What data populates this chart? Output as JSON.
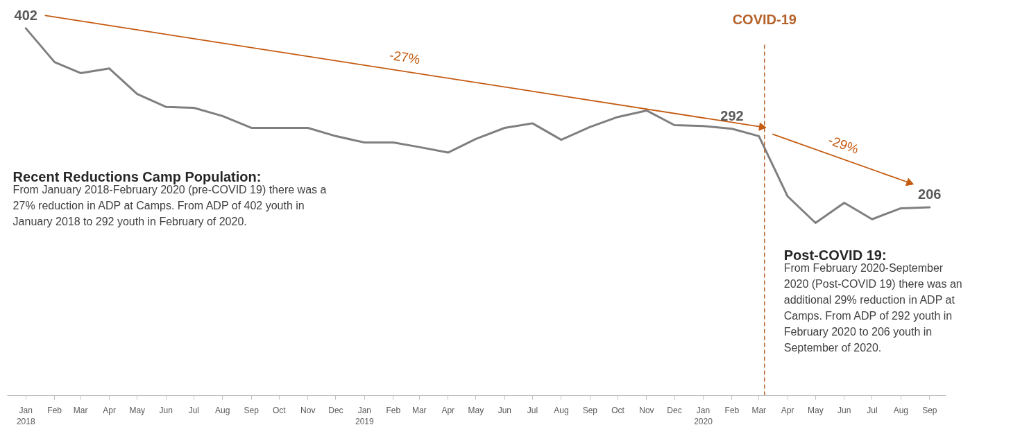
{
  "chart_data": {
    "type": "line",
    "x": [
      "2018-01",
      "2018-02",
      "2018-03",
      "2018-04",
      "2018-05",
      "2018-06",
      "2018-07",
      "2018-08",
      "2018-09",
      "2018-10",
      "2018-11",
      "2018-12",
      "2019-01",
      "2019-02",
      "2019-03",
      "2019-04",
      "2019-05",
      "2019-06",
      "2019-07",
      "2019-08",
      "2019-09",
      "2019-10",
      "2019-11",
      "2019-12",
      "2020-01",
      "2020-02",
      "2020-03",
      "2020-04",
      "2020-05",
      "2020-06",
      "2020-07",
      "2020-08",
      "2020-09"
    ],
    "series": [
      {
        "color": "#7f7f7f",
        "values": [
          402,
          365,
          353,
          358,
          330,
          316,
          315,
          306,
          293,
          293,
          293,
          284,
          277,
          277,
          272,
          266,
          281,
          293,
          298,
          280,
          294,
          305,
          312,
          296,
          295,
          292,
          284,
          218,
          189,
          211,
          193,
          205,
          206
        ],
        "value_labels": [
          "402",
          null,
          null,
          null,
          null,
          null,
          null,
          null,
          null,
          null,
          null,
          null,
          null,
          null,
          null,
          null,
          null,
          null,
          null,
          null,
          null,
          null,
          null,
          null,
          null,
          "292",
          null,
          null,
          null,
          null,
          null,
          null,
          "206"
        ]
      },
      {
        "name": "-27%",
        "type": "line",
        "color": "#c55a11",
        "x": [
          "2018-01-22",
          "2020-03-04"
        ],
        "values": [
          416,
          294
        ]
      },
      {
        "name": "-29%",
        "type": "line",
        "color": "#c55a11",
        "x": [
          "2020-03-16",
          "2020-08-10"
        ],
        "values": [
          286,
          233
        ]
      }
    ],
    "ref_lines": [
      {
        "axis": "x",
        "value": "2020-03-07",
        "label": "COVID-19",
        "color": "#b5622a",
        "line_style": "dashed"
      }
    ],
    "xlim": [
      "2017-12-12",
      "2020-09-19"
    ],
    "xticks": [
      {
        "value": "2018-01",
        "label": "Jan\n2018"
      },
      {
        "value": "2018-02",
        "label": "Feb"
      },
      {
        "value": "2018-03",
        "label": "Mar"
      },
      {
        "value": "2018-04",
        "label": "Apr"
      },
      {
        "value": "2018-05",
        "label": "May"
      },
      {
        "value": "2018-06",
        "label": "Jun"
      },
      {
        "value": "2018-07",
        "label": "Jul"
      },
      {
        "value": "2018-08",
        "label": "Aug"
      },
      {
        "value": "2018-09",
        "label": "Sep"
      },
      {
        "value": "2018-10",
        "label": "Oct"
      },
      {
        "value": "2018-11",
        "label": "Nov"
      },
      {
        "value": "2018-12",
        "label": "Dec"
      },
      {
        "value": "2019-01",
        "label": "Jan\n2019"
      },
      {
        "value": "2019-02",
        "label": "Feb"
      },
      {
        "value": "2019-03",
        "label": "Mar"
      },
      {
        "value": "2019-04",
        "label": "Apr"
      },
      {
        "value": "2019-05",
        "label": "May"
      },
      {
        "value": "2019-06",
        "label": "Jun"
      },
      {
        "value": "2019-07",
        "label": "Jul"
      },
      {
        "value": "2019-08",
        "label": "Aug"
      },
      {
        "value": "2019-09",
        "label": "Sep"
      },
      {
        "value": "2019-10",
        "label": "Oct"
      },
      {
        "value": "2019-11",
        "label": "Nov"
      },
      {
        "value": "2019-12",
        "label": "Dec"
      },
      {
        "value": "2020-01",
        "label": "Jan\n2020"
      },
      {
        "value": "2020-02",
        "label": "Feb"
      },
      {
        "value": "2020-03",
        "label": "Mar"
      },
      {
        "value": "2020-04",
        "label": "Apr"
      },
      {
        "value": "2020-05",
        "label": "May"
      },
      {
        "value": "2020-06",
        "label": "Jun"
      },
      {
        "value": "2020-07",
        "label": "Jul"
      },
      {
        "value": "2020-08",
        "label": "Aug"
      },
      {
        "value": "2020-09",
        "label": "Sep"
      }
    ],
    "annotations": [
      "Recent Reductions Camp Population:",
      "From January 2018-February 2020 (pre-COVID 19) there was a\n27% reduction in ADP at Camps. From ADP of 402 youth in\nJanuary 2018 to 292 youth in February of 2020.",
      "Post-COVID 19:",
      "From February 2020-September\n2020 (Post-COVID 19) there was an\nadditional 29% reduction in ADP at\nCamps. From ADP of 292 youth in\nFebruary 2020 to 206 youth in\nSeptember of 2020."
    ],
    "grid": false,
    "tick_labels": "x"
  }
}
